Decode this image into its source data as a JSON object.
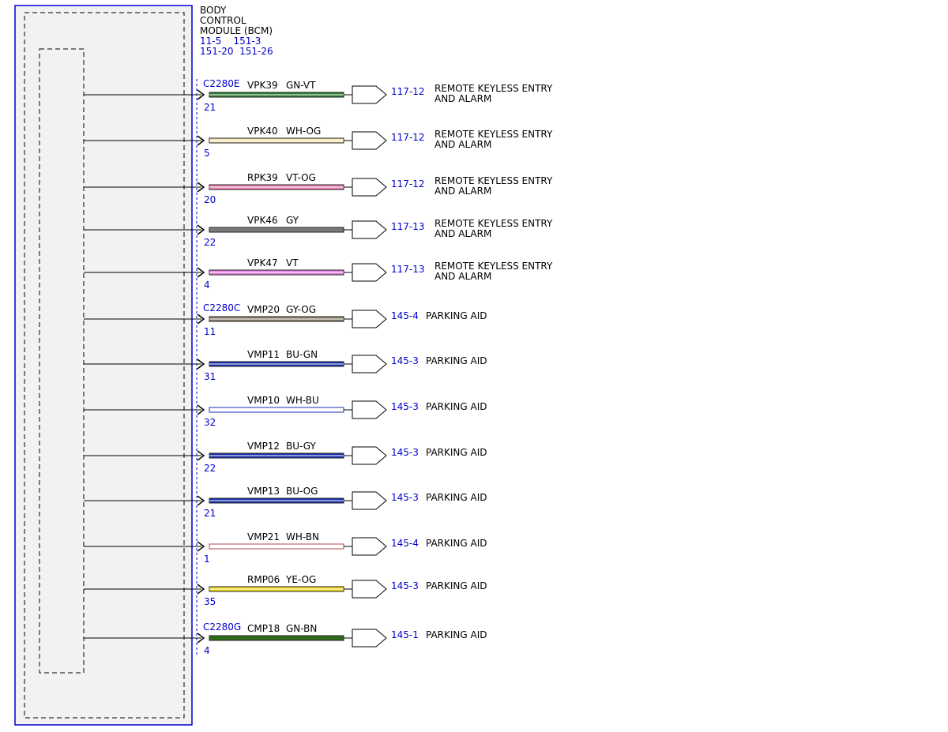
{
  "module": {
    "title_lines": [
      "BODY",
      "CONTROL",
      "MODULE (BCM)"
    ],
    "ref_lines": [
      "11-5    151-3",
      "151-20  151-26"
    ]
  },
  "colors": {
    "module_border": "#0000cc",
    "module_fill": "#f2f2f2",
    "reference_text": "#0000cc"
  },
  "wires": [
    {
      "connector": "C2280E",
      "pin": "21",
      "circuit": "VPK39",
      "color_code": "GN-VT",
      "base": "#2e7d32",
      "stripe": "#ffffff",
      "ref": "117-12",
      "dest": [
        "REMOTE KEYLESS ENTRY",
        "AND ALARM"
      ]
    },
    {
      "connector": "",
      "pin": "5",
      "circuit": "VPK40",
      "color_code": "WH-OG",
      "base": "#f5e6b5",
      "stripe": "#ffffff",
      "ref": "117-12",
      "dest": [
        "REMOTE KEYLESS ENTRY",
        "AND ALARM"
      ]
    },
    {
      "connector": "",
      "pin": "20",
      "circuit": "RPK39",
      "color_code": "VT-OG",
      "base": "#e87fb2",
      "stripe": "#ffffff",
      "ref": "117-12",
      "dest": [
        "REMOTE KEYLESS ENTRY",
        "AND ALARM"
      ]
    },
    {
      "connector": "",
      "pin": "22",
      "circuit": "VPK46",
      "color_code": "GY",
      "base": "#7a7a7a",
      "stripe": "",
      "ref": "117-13",
      "dest": [
        "REMOTE KEYLESS ENTRY",
        "AND ALARM"
      ]
    },
    {
      "connector": "",
      "pin": "4",
      "circuit": "VPK47",
      "color_code": "VT",
      "base": "#e57ee0",
      "stripe": "#ffffff",
      "ref": "117-13",
      "dest": [
        "REMOTE KEYLESS ENTRY",
        "AND ALARM"
      ]
    },
    {
      "connector": "C2280C",
      "pin": "11",
      "circuit": "VMP20",
      "color_code": "GY-OG",
      "base": "#8a7f6a",
      "stripe": "#ffffff",
      "ref": "145-4",
      "dest": [
        "PARKING AID"
      ]
    },
    {
      "connector": "",
      "pin": "31",
      "circuit": "VMP11",
      "color_code": "BU-GN",
      "base": "#1a30b0",
      "stripe": "#ffffff",
      "ref": "145-3",
      "dest": [
        "PARKING AID"
      ]
    },
    {
      "connector": "",
      "pin": "32",
      "circuit": "VMP10",
      "color_code": "WH-BU",
      "base": "#ffffff",
      "stripe": "",
      "edge": "#1a30b0",
      "ref": "145-3",
      "dest": [
        "PARKING AID"
      ]
    },
    {
      "connector": "",
      "pin": "22",
      "circuit": "VMP12",
      "color_code": "BU-GY",
      "base": "#1a30b0",
      "stripe": "#ffffff",
      "ref": "145-3",
      "dest": [
        "PARKING AID"
      ]
    },
    {
      "connector": "",
      "pin": "21",
      "circuit": "VMP13",
      "color_code": "BU-OG",
      "base": "#1a30b0",
      "stripe": "#ffffff",
      "ref": "145-3",
      "dest": [
        "PARKING AID"
      ]
    },
    {
      "connector": "",
      "pin": "1",
      "circuit": "VMP21",
      "color_code": "WH-BN",
      "base": "#ffffff",
      "stripe": "",
      "edge": "#b04a4a",
      "ref": "145-4",
      "dest": [
        "PARKING AID"
      ]
    },
    {
      "connector": "",
      "pin": "35",
      "circuit": "RMP06",
      "color_code": "YE-OG",
      "base": "#f0d81a",
      "stripe": "#ffffff",
      "ref": "145-3",
      "dest": [
        "PARKING AID"
      ]
    },
    {
      "connector": "C2280G",
      "pin": "4",
      "circuit": "CMP18",
      "color_code": "GN-BN",
      "base": "#2e6b1a",
      "stripe": "",
      "ref": "145-1",
      "dest": [
        "PARKING AID"
      ]
    }
  ]
}
